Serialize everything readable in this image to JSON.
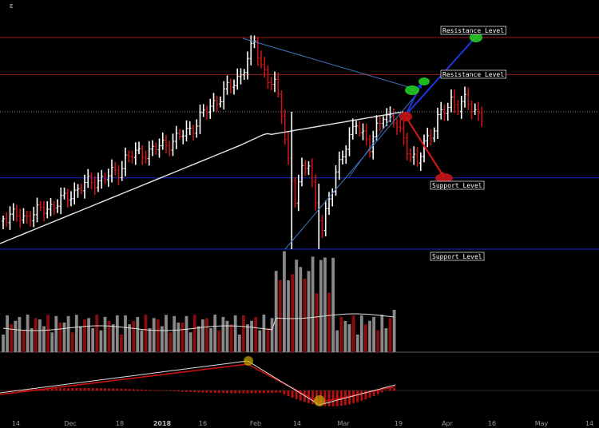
{
  "chart_data": {
    "type": "candlestick",
    "corner_label": "E",
    "x_ticks": [
      {
        "label": "14",
        "bold": false
      },
      {
        "label": "Dec",
        "bold": false
      },
      {
        "label": "18",
        "bold": false
      },
      {
        "label": "2018",
        "bold": true
      },
      {
        "label": "16",
        "bold": false
      },
      {
        "label": "Feb",
        "bold": false
      },
      {
        "label": "14",
        "bold": false
      },
      {
        "label": "Mar",
        "bold": false
      },
      {
        "label": "19",
        "bold": false
      },
      {
        "label": "Apr",
        "bold": false
      },
      {
        "label": "16",
        "bold": false
      },
      {
        "label": "May",
        "bold": false
      },
      {
        "label": "14",
        "bold": false
      }
    ],
    "levels": [
      {
        "label": "Resistance Level",
        "kind": "resistance",
        "price": 20000
      },
      {
        "label": "Resistance Level",
        "kind": "resistance",
        "price": 16200
      },
      {
        "label": "Support Level",
        "kind": "support",
        "price": 9000
      },
      {
        "label": "Support Level",
        "kind": "support",
        "price": 6000
      }
    ],
    "colors": {
      "up": "#ffffff",
      "down": "#c81414",
      "resistance": "#9a1b1b",
      "support": "#1a2acc",
      "trendline": "#3f78c0",
      "moving_average": "#e6e6e6",
      "bull_arrow": "#1e36e0",
      "bear_arrow": "#e01818",
      "bull_marker": "#22cc22",
      "bear_marker": "#c81414"
    }
  }
}
